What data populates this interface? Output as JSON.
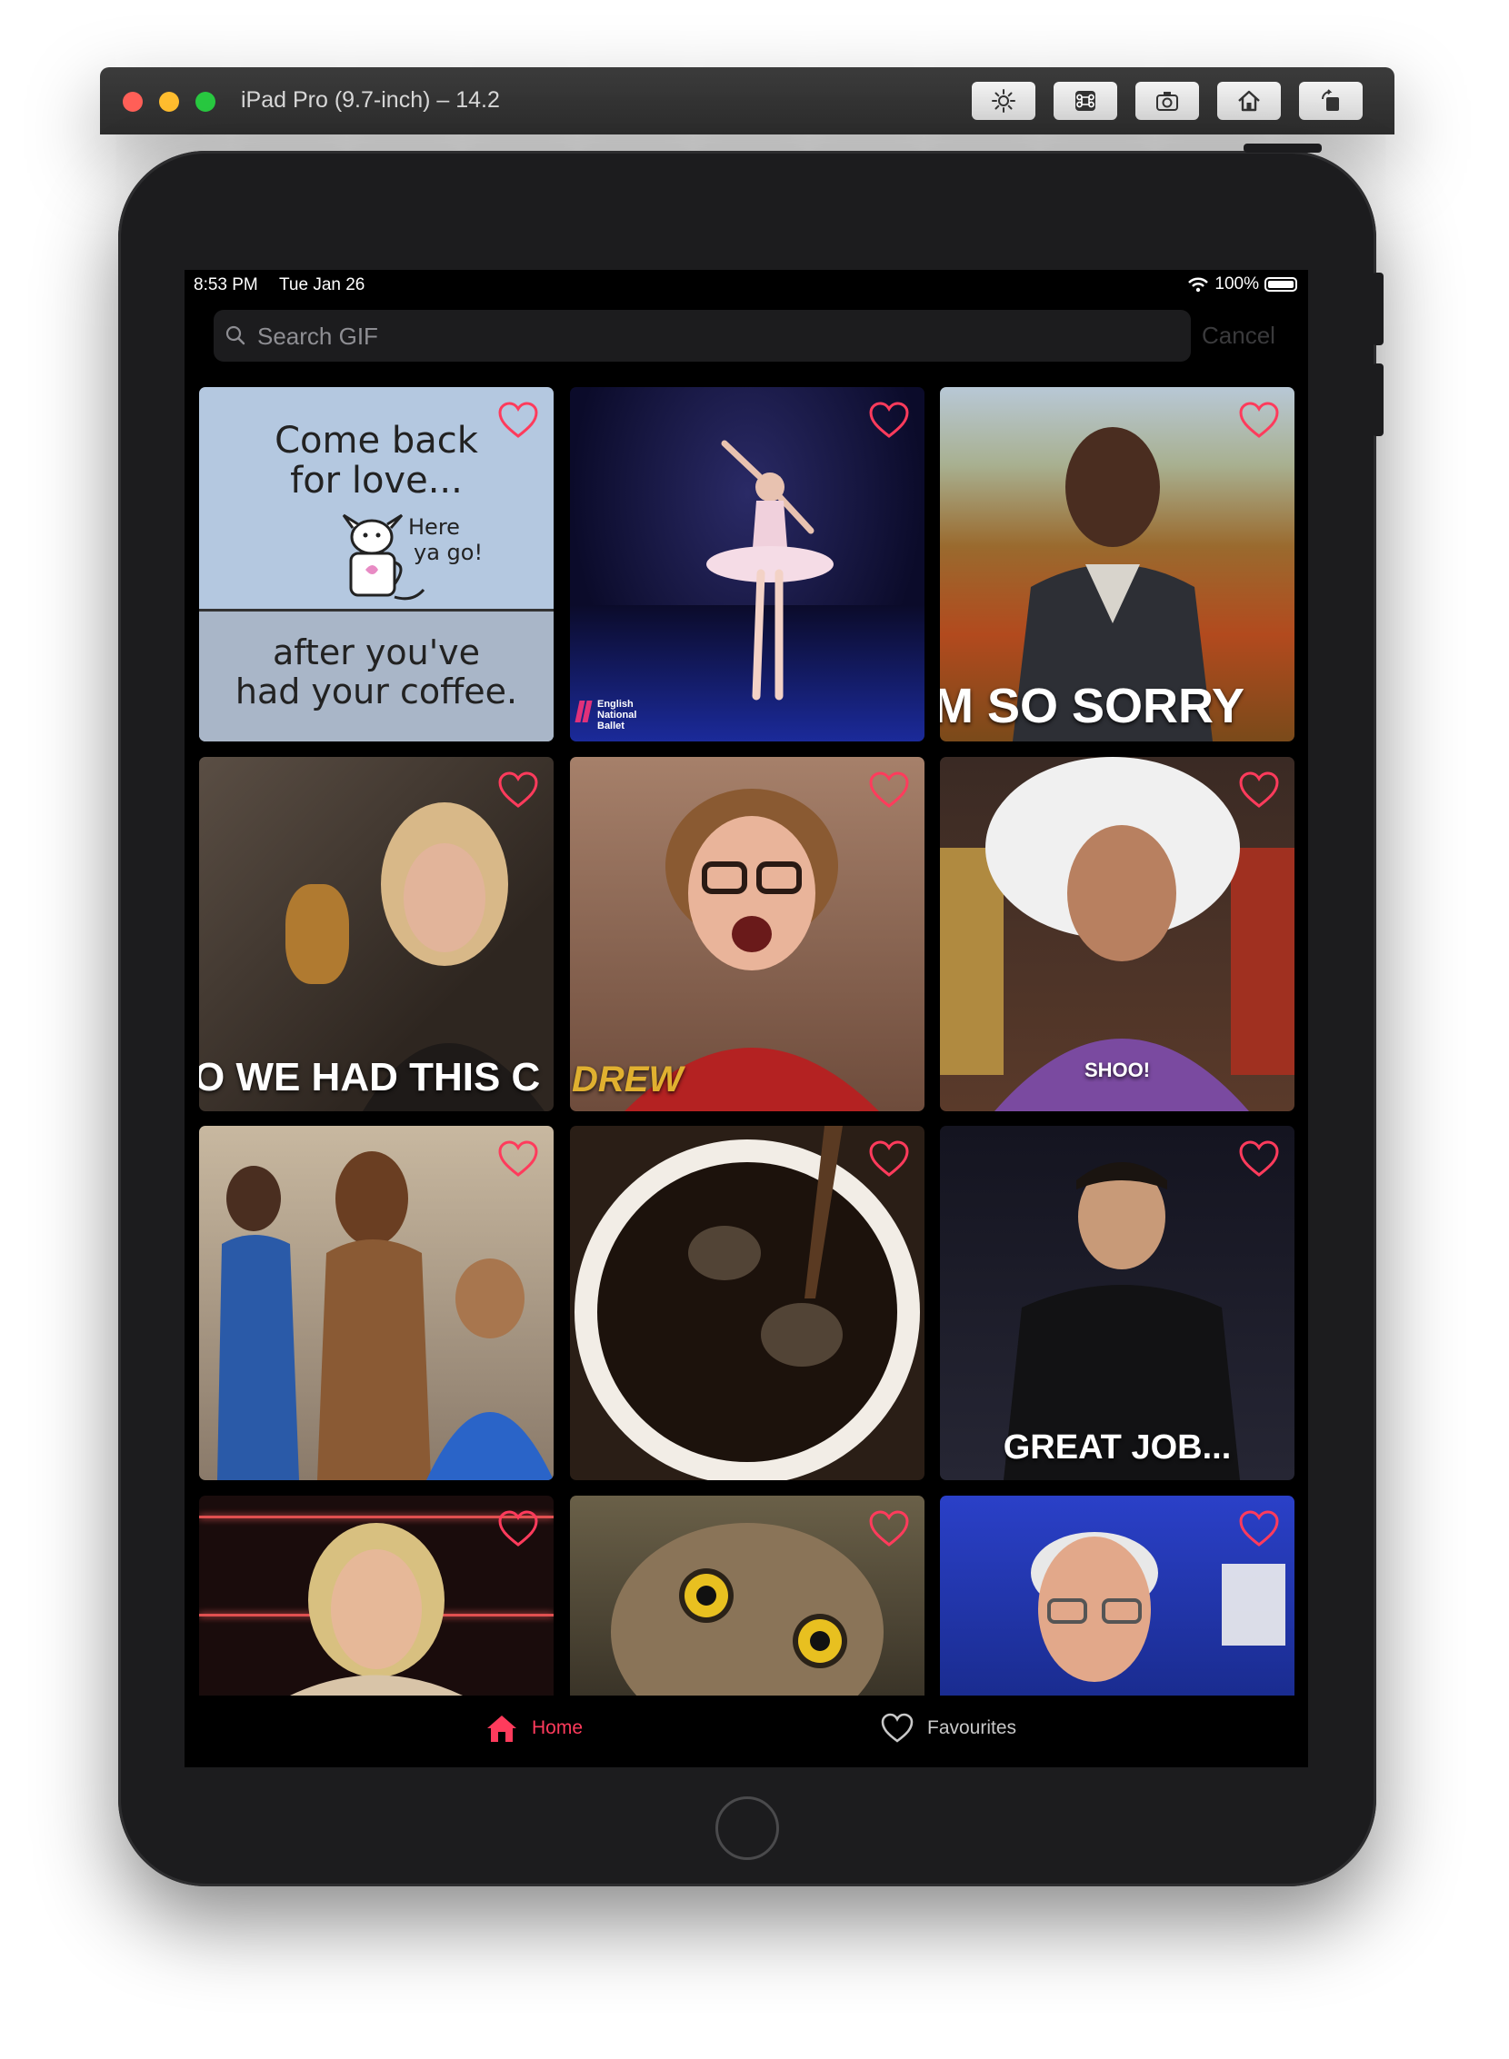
{
  "window": {
    "title": "iPad Pro (9.7-inch) – 14.2"
  },
  "toolbar": [
    "brightness-icon",
    "command-icon",
    "screenshot-icon",
    "home-icon",
    "rotate-icon"
  ],
  "status_bar": {
    "time": "8:53 PM",
    "date": "Tue Jan 26",
    "battery": "100%"
  },
  "search": {
    "placeholder": "Search GIF",
    "cancel_label": "Cancel"
  },
  "colors": {
    "accent": "#ff3b5c",
    "background": "#000000",
    "search_bg": "#1c1c1e"
  },
  "gifs": [
    {
      "caption_lines": [
        "Come back",
        "for love...",
        "after you've",
        "had your coffee."
      ],
      "aside_lines": [
        "Here",
        "ya go!"
      ],
      "favorited": false
    },
    {
      "subject": "ballerina",
      "watermark_lines": [
        "English",
        "National",
        "Ballet"
      ],
      "favorited": false
    },
    {
      "subject": "man-apologizing",
      "caption": "M SO SORRY",
      "favorited": false
    },
    {
      "subject": "woman-smiling",
      "caption": "O WE HAD THIS C",
      "favorited": false
    },
    {
      "subject": "woman-surprised",
      "watermark": "DREW",
      "favorited": false
    },
    {
      "subject": "woman-in-wig",
      "caption": "SHOO!",
      "favorited": false
    },
    {
      "subject": "store-workers",
      "favorited": false
    },
    {
      "subject": "coffee-pour",
      "favorited": false
    },
    {
      "subject": "host-speaking",
      "caption": "GREAT JOB...",
      "favorited": false
    },
    {
      "subject": "woman-surprised-2",
      "favorited": false
    },
    {
      "subject": "owl",
      "favorited": false
    },
    {
      "subject": "man-laughing",
      "favorited": false
    }
  ],
  "tabs": [
    {
      "label": "Home",
      "icon": "house-icon",
      "selected": true
    },
    {
      "label": "Favourites",
      "icon": "heart-icon",
      "selected": false
    }
  ]
}
